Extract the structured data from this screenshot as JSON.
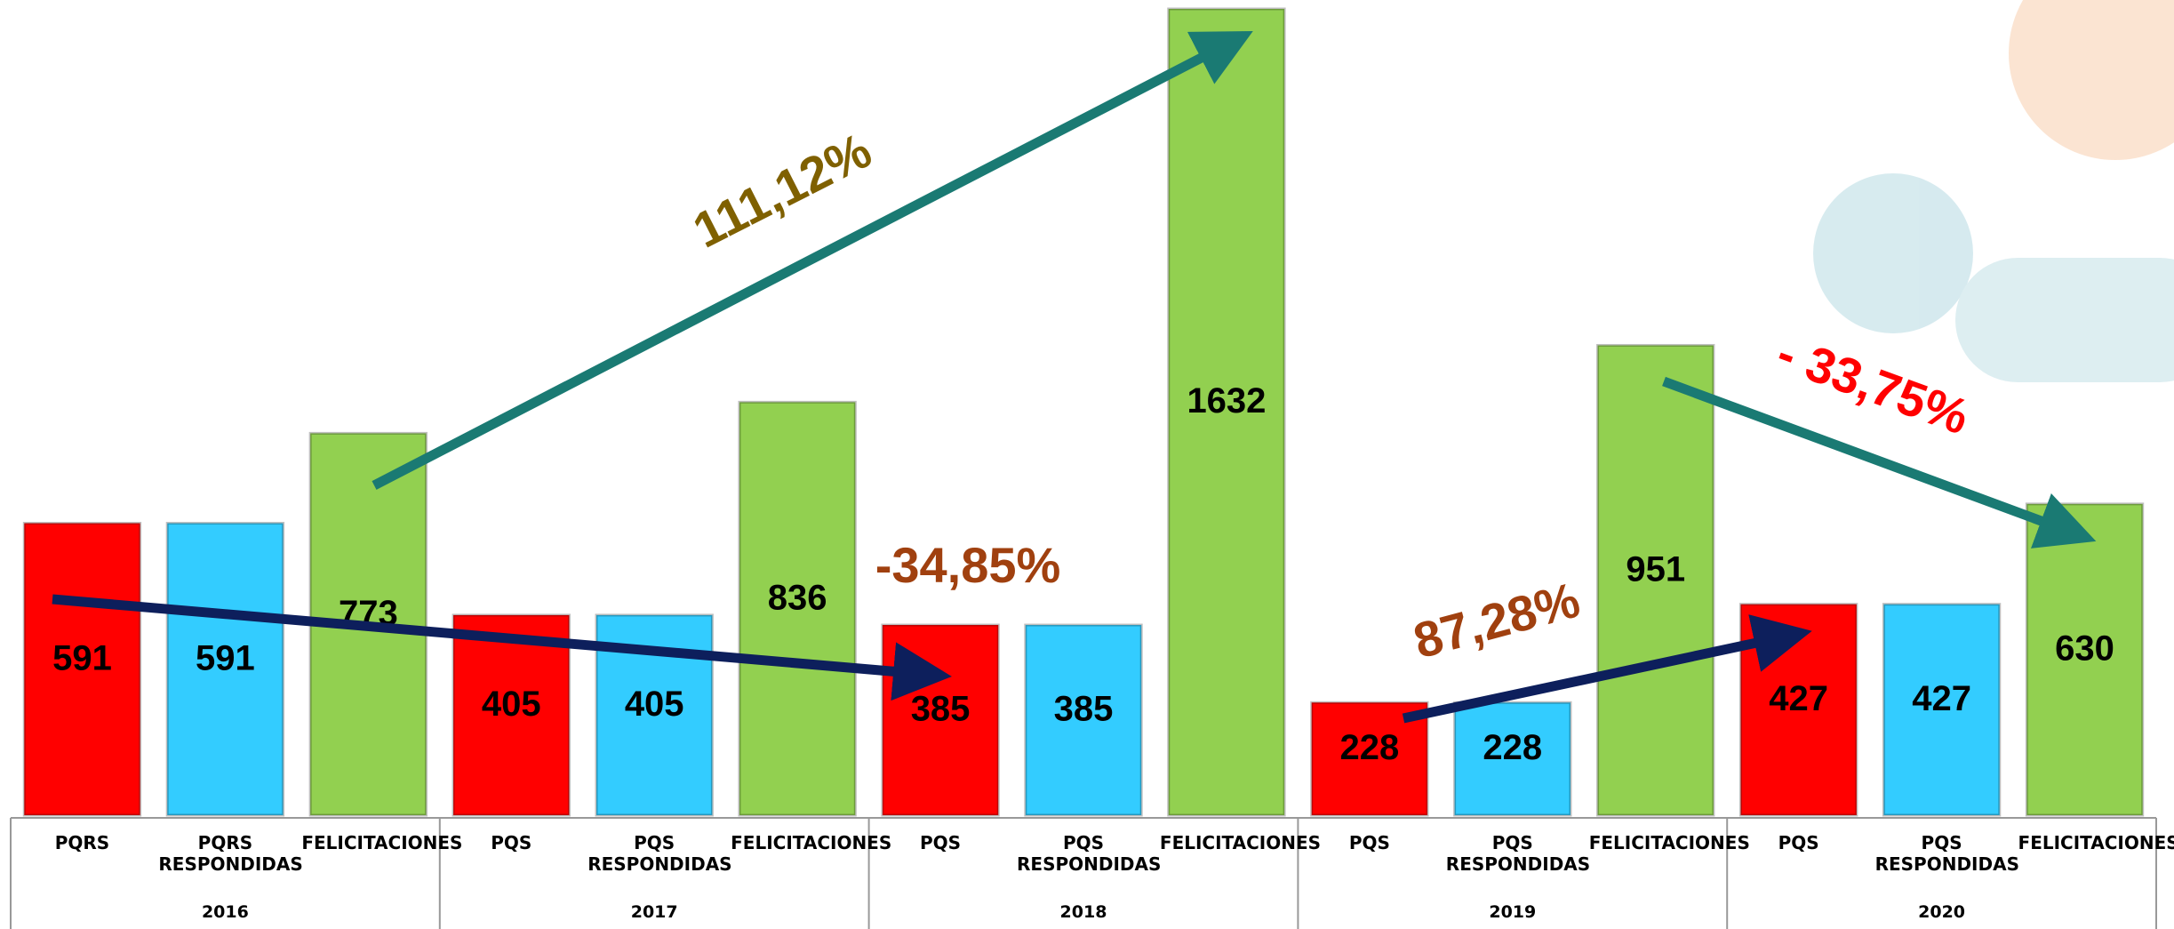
{
  "chart_data": {
    "type": "bar",
    "colors": [
      "#ff0000",
      "#33ccff",
      "#92d050"
    ],
    "groups": [
      {
        "label": "2016",
        "categories": [
          "PQRS",
          "PQRS RESPONDIDAS",
          "FELICITACIONES"
        ],
        "values": [
          591,
          591,
          773
        ]
      },
      {
        "label": "2017",
        "categories": [
          "PQS",
          "PQS RESPONDIDAS",
          "FELICITACIONES"
        ],
        "values": [
          405,
          405,
          836
        ]
      },
      {
        "label": "2018",
        "categories": [
          "PQS",
          "PQS RESPONDIDAS",
          "FELICITACIONES"
        ],
        "values": [
          385,
          385,
          1632
        ]
      },
      {
        "label": "2019",
        "categories": [
          "PQS",
          "PQS RESPONDIDAS",
          "FELICITACIONES"
        ],
        "values": [
          228,
          228,
          951
        ]
      },
      {
        "label": "2020",
        "categories": [
          "PQS",
          "PQS RESPONDIDAS",
          "FELICITACIONES"
        ],
        "values": [
          427,
          427,
          630
        ]
      }
    ],
    "annotations": [
      {
        "text": "111,12%",
        "color": "#7f6000"
      },
      {
        "text": "-34,85%",
        "color": "#a0400f"
      },
      {
        "text": "87,28%",
        "color": "#a0400f"
      },
      {
        "text": "- 33,75%",
        "color": "#ff0000"
      }
    ]
  }
}
